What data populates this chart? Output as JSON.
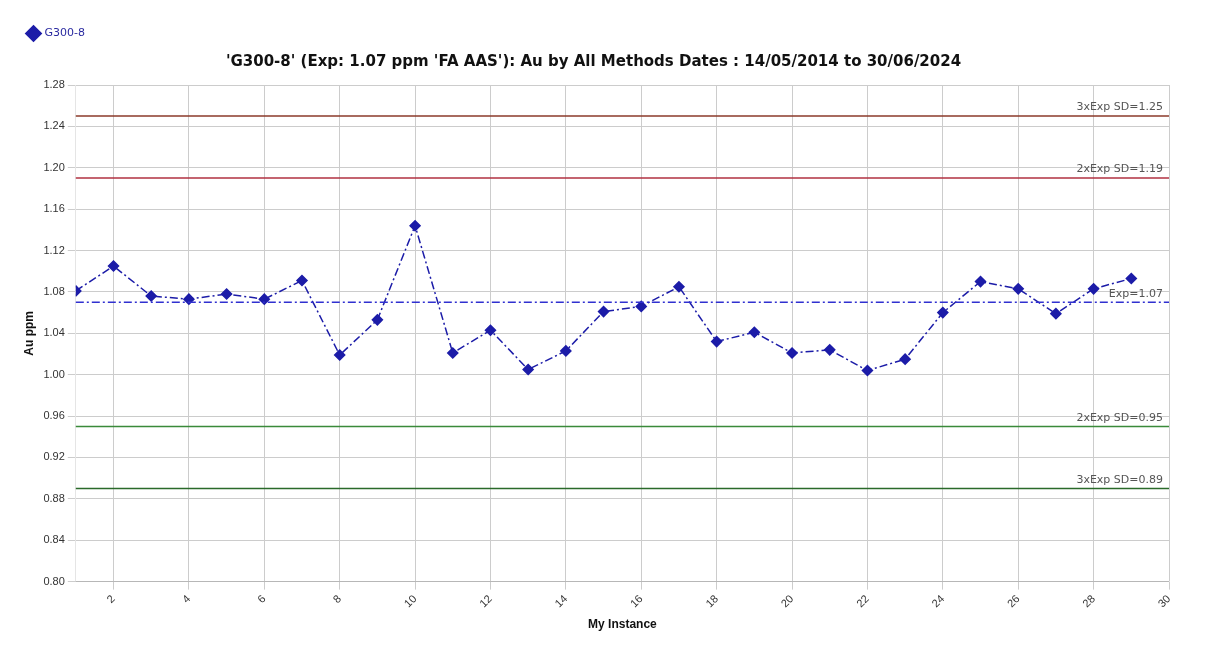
{
  "chart_data": {
    "type": "line",
    "title": "'G300-8' (Exp: 1.07 ppm 'FA AAS'): Au by All Methods Dates : 14/05/2014 to 30/06/2024",
    "xlabel": "My Instance",
    "ylabel": "Au ppm",
    "x": [
      1,
      2,
      3,
      4,
      5,
      6,
      7,
      8,
      9,
      10,
      11,
      12,
      13,
      14,
      15,
      16,
      17,
      18,
      19,
      20,
      21,
      22,
      23,
      24,
      25,
      26,
      27,
      28,
      29
    ],
    "series": [
      {
        "name": "G300-8",
        "color": "#1c1ca8",
        "values": [
          1.081,
          1.105,
          1.076,
          1.073,
          1.078,
          1.073,
          1.091,
          1.019,
          1.053,
          1.144,
          1.021,
          1.043,
          1.005,
          1.023,
          1.061,
          1.066,
          1.085,
          1.032,
          1.041,
          1.021,
          1.024,
          1.004,
          1.015,
          1.06,
          1.09,
          1.083,
          1.059,
          1.083,
          1.093
        ]
      }
    ],
    "xlim": [
      1,
      30
    ],
    "xticks": [
      2,
      4,
      6,
      8,
      10,
      12,
      14,
      16,
      18,
      20,
      22,
      24,
      26,
      28,
      30
    ],
    "ylim": [
      0.8,
      1.28
    ],
    "yticks": [
      {
        "value": 0.8,
        "label": "0.80"
      },
      0.84,
      0.88,
      0.92,
      0.96,
      {
        "value": 1.0,
        "label": "1.00"
      },
      1.04,
      1.08,
      1.12,
      1.16,
      {
        "value": 1.2,
        "label": "1.20"
      },
      1.24,
      1.28
    ],
    "ref_lines": [
      {
        "axis": "y",
        "value": 1.25,
        "label": "3xExp SD=1.25",
        "color": "#8b3a2a",
        "line_style": "solid"
      },
      {
        "axis": "y",
        "value": 1.19,
        "label": "2xExp SD=1.19",
        "color": "#b03040",
        "line_style": "solid"
      },
      {
        "axis": "y",
        "value": 1.07,
        "label": "Exp=1.07",
        "color": "#3030d0",
        "line_style": "dashed"
      },
      {
        "axis": "y",
        "value": 0.95,
        "label": "2xExp SD=0.95",
        "color": "#3a8a3a",
        "line_style": "solid"
      },
      {
        "axis": "y",
        "value": 0.89,
        "label": "3xExp SD=0.89",
        "color": "#2a6a2a",
        "line_style": "solid"
      }
    ],
    "grid": true,
    "legend": "top left",
    "marker": "diamond",
    "line_style": "dashed"
  }
}
